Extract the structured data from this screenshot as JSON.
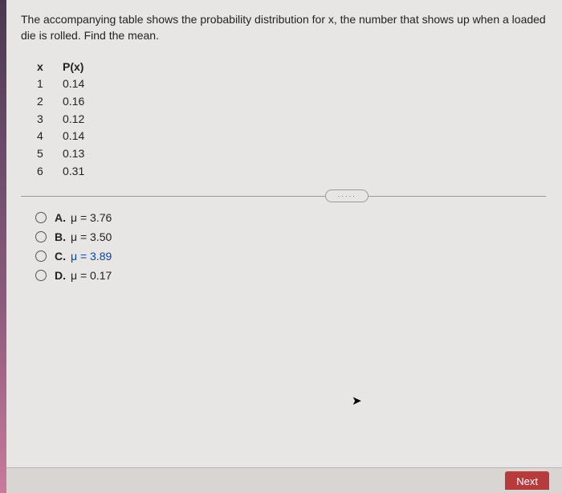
{
  "question": {
    "text": "The accompanying table shows the probability distribution for x, the number that shows up when a loaded die is rolled. Find the mean."
  },
  "table": {
    "header_x": "x",
    "header_p": "P(x)",
    "rows": [
      {
        "x": "1",
        "p": "0.14"
      },
      {
        "x": "2",
        "p": "0.16"
      },
      {
        "x": "3",
        "p": "0.12"
      },
      {
        "x": "4",
        "p": "0.14"
      },
      {
        "x": "5",
        "p": "0.13"
      },
      {
        "x": "6",
        "p": "0.31"
      }
    ]
  },
  "options": [
    {
      "letter": "A.",
      "text": "μ = 3.76"
    },
    {
      "letter": "B.",
      "text": "μ = 3.50"
    },
    {
      "letter": "C.",
      "text": "μ = 3.89"
    },
    {
      "letter": "D.",
      "text": "μ = 0.17"
    }
  ],
  "divider_dots": "·····",
  "next_label": "Next"
}
